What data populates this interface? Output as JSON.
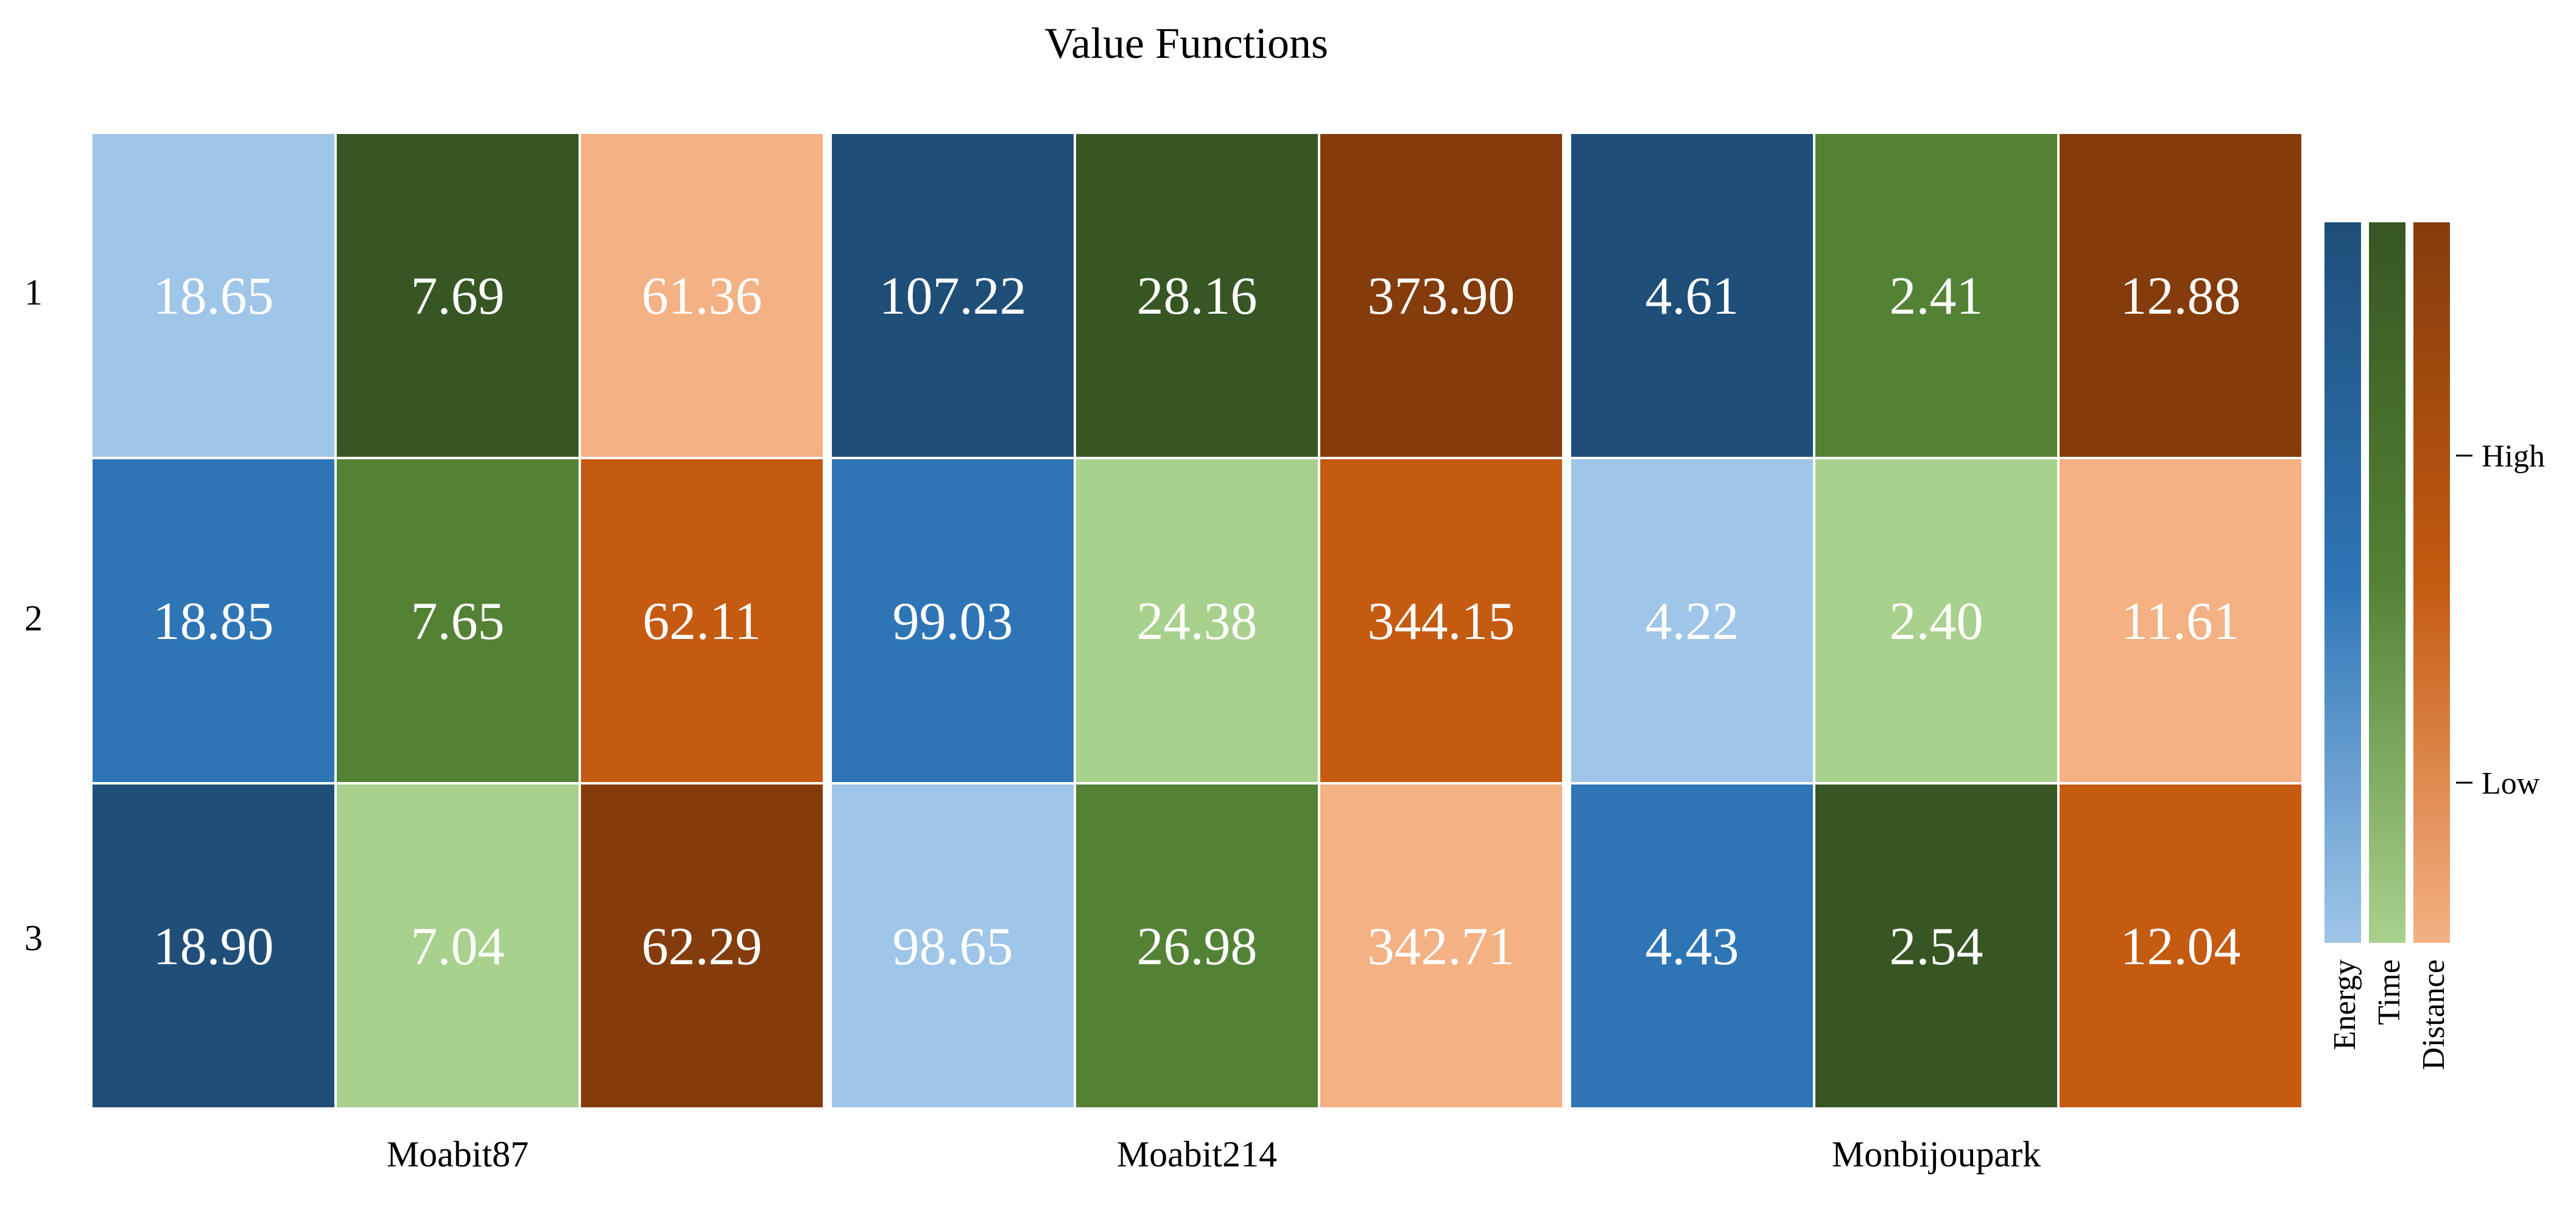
{
  "chart_data": {
    "type": "heatmap",
    "title": "Value Functions",
    "rows": [
      "1",
      "2",
      "3"
    ],
    "groups": [
      "Moabit87",
      "Moabit214",
      "Monbijoupark"
    ],
    "metrics": [
      "Energy",
      "Time",
      "Distance"
    ],
    "values": {
      "Moabit87": {
        "Energy": [
          18.65,
          18.85,
          18.9
        ],
        "Time": [
          7.69,
          7.65,
          7.04
        ],
        "Distance": [
          61.36,
          62.11,
          62.29
        ]
      },
      "Moabit214": {
        "Energy": [
          107.22,
          99.03,
          98.65
        ],
        "Time": [
          28.16,
          24.38,
          26.98
        ],
        "Distance": [
          373.9,
          344.15,
          342.71
        ]
      },
      "Monbijoupark": {
        "Energy": [
          4.61,
          4.22,
          4.43
        ],
        "Time": [
          2.41,
          2.4,
          2.54
        ],
        "Distance": [
          12.88,
          11.61,
          12.04
        ]
      }
    },
    "colorscales": {
      "Energy": [
        "#9fc5e8",
        "#2e75b6",
        "#1f4e79"
      ],
      "Time": [
        "#a9d18e",
        "#548235",
        "#375623"
      ],
      "Distance": [
        "#f4b183",
        "#c55a11",
        "#843c0c"
      ]
    },
    "colorbar": {
      "tick_high": "High",
      "tick_low": "Low",
      "labels": [
        "Energy",
        "Time",
        "Distance"
      ]
    },
    "cell_text_color": "#ffffff"
  }
}
